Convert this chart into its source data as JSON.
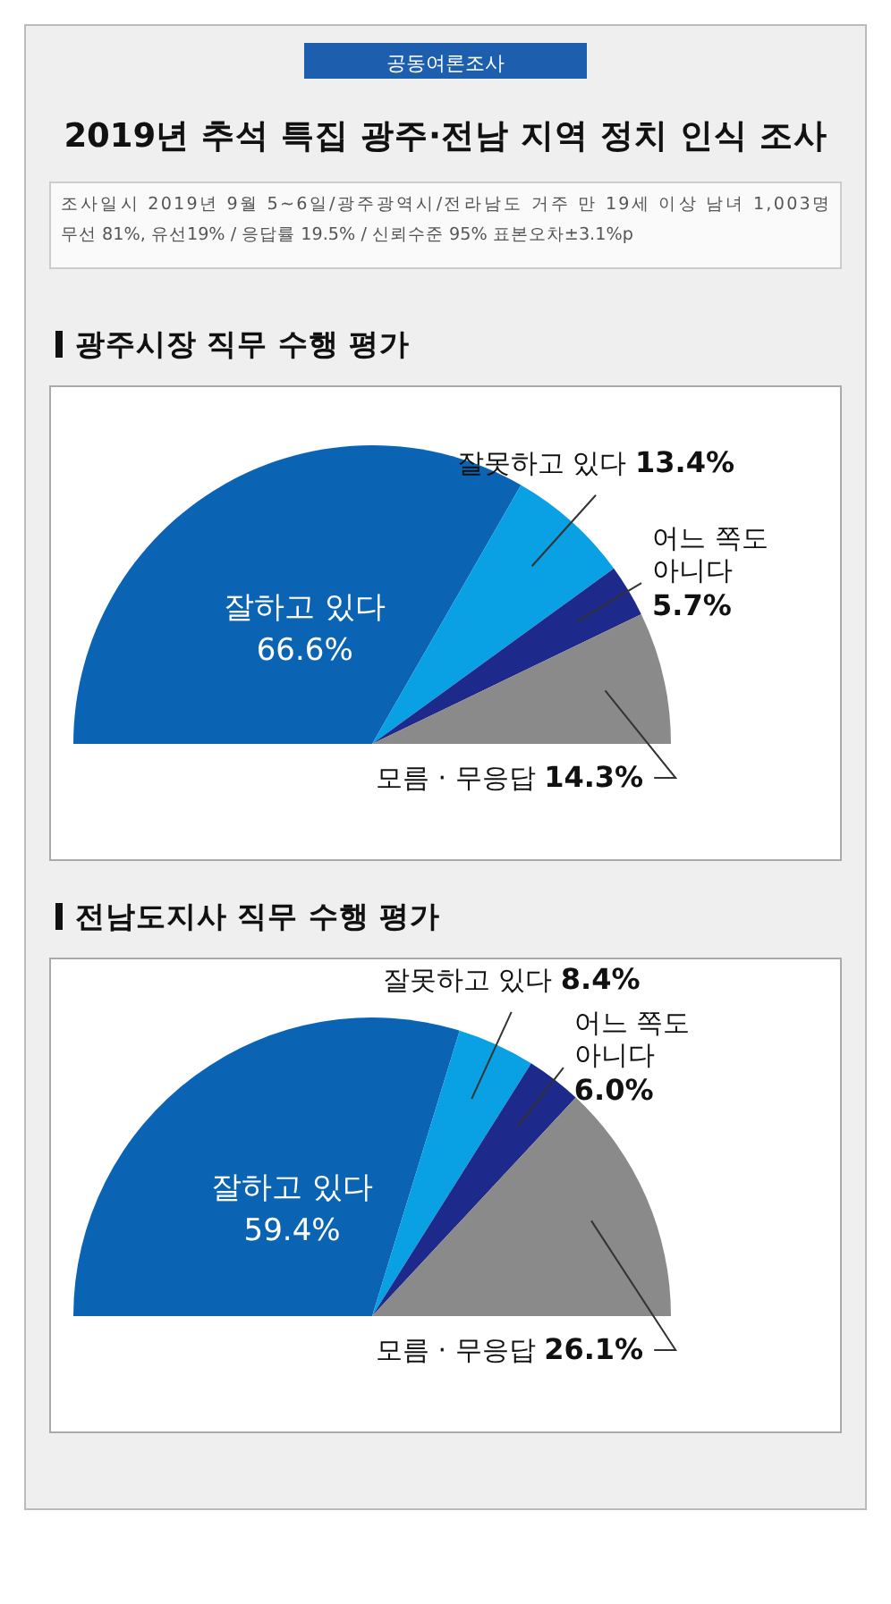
{
  "chart_data": [
    {
      "type": "other",
      "title": "2019년 추석 특집 광주·전남 지역 정치 인식 조사",
      "annotations": [
        "공동여론조사",
        "조사일시 2019년 9월 5~6일/광주광역시/전라남도 거주 만 19세 이상 남녀 1,003명",
        "무선 81%, 유선19% / 응답률 19.5% / 신뢰수준 95% 표본오차±3.1%p"
      ]
    },
    {
      "type": "pie",
      "title": "광주시장 직무 수행 평가",
      "categories": [
        "잘하고 있다",
        "잘못하고 있다",
        "어느 쪽도 아니다",
        "모름 · 무응답"
      ],
      "values": [
        66.6,
        13.4,
        5.7,
        14.3
      ],
      "colors": [
        "#0b64b3",
        "#0aa0e4",
        "#1d2a8c",
        "#8a8a8a"
      ],
      "value_labels": [
        "66.6%",
        "13.4%",
        "5.7%",
        "14.3%"
      ]
    },
    {
      "type": "pie",
      "title": "전남도지사 직무 수행 평가",
      "categories": [
        "잘하고 있다",
        "잘못하고 있다",
        "어느 쪽도 아니다",
        "모름 · 무응답"
      ],
      "values": [
        59.4,
        8.4,
        6.0,
        26.1
      ],
      "colors": [
        "#0b64b3",
        "#0aa0e4",
        "#1d2a8c",
        "#8a8a8a"
      ],
      "value_labels": [
        "59.4%",
        "8.4%",
        "6.0%",
        "26.1%"
      ]
    }
  ]
}
